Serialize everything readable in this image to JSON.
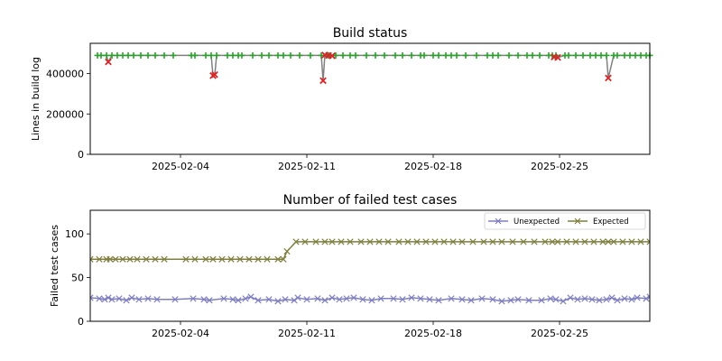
{
  "chart_data": [
    {
      "type": "scatter",
      "title": "Build status",
      "ylabel": "Lines in build log",
      "xlabel": "",
      "date_range": [
        "2025-01-30",
        "2025-03-02"
      ],
      "ylim": [
        0,
        550000
      ],
      "xticks": [
        "2025-02-04",
        "2025-02-11",
        "2025-02-18",
        "2025-02-25"
      ],
      "yticks": [
        0,
        200000,
        400000
      ],
      "ytick_labels": [
        "0",
        "200000",
        "400000"
      ],
      "baseline_lines": 490000,
      "success": {
        "color": "#2ca02c",
        "marker": "plus",
        "dates": [
          "2025-01-30.4",
          "2025-01-30.6",
          "2025-01-30.9",
          "2025-01-31.2",
          "2025-01-31.5",
          "2025-01-31.8",
          "2025-02-01.1",
          "2025-02-01.4",
          "2025-02-01.8",
          "2025-02-02.2",
          "2025-02-02.6",
          "2025-02-03.1",
          "2025-02-03.6",
          "2025-02-04.6",
          "2025-02-04.8",
          "2025-02-05.4",
          "2025-02-05.7",
          "2025-02-06.0",
          "2025-02-06.6",
          "2025-02-06.9",
          "2025-02-07.2",
          "2025-02-07.4",
          "2025-02-08.0",
          "2025-02-08.5",
          "2025-02-08.9",
          "2025-02-09.4",
          "2025-02-09.7",
          "2025-02-10.1",
          "2025-02-10.6",
          "2025-02-11.2",
          "2025-02-11.8",
          "2025-02-12.2",
          "2025-02-12.6",
          "2025-02-13.0",
          "2025-02-13.4",
          "2025-02-13.7",
          "2025-02-14.3",
          "2025-02-14.8",
          "2025-02-15.3",
          "2025-02-15.9",
          "2025-02-16.3",
          "2025-02-16.8",
          "2025-02-17.3",
          "2025-02-17.5",
          "2025-02-18.0",
          "2025-02-18.3",
          "2025-02-18.7",
          "2025-02-19.0",
          "2025-02-19.3",
          "2025-02-19.8",
          "2025-02-20.4",
          "2025-02-21.0",
          "2025-02-21.3",
          "2025-02-21.6",
          "2025-02-22.2",
          "2025-02-22.7",
          "2025-02-23.2",
          "2025-02-23.5",
          "2025-02-23.9",
          "2025-02-24.4",
          "2025-02-24.6",
          "2025-02-24.8",
          "2025-02-25.3",
          "2025-02-25.5",
          "2025-02-25.9",
          "2025-02-26.3",
          "2025-02-26.7",
          "2025-02-27.0",
          "2025-02-27.3",
          "2025-02-27.6",
          "2025-02-28.0",
          "2025-02-28.2",
          "2025-02-28.6",
          "2025-02-28.9",
          "2025-03-01.2",
          "2025-03-01.5",
          "2025-03-01.8",
          "2025-03-02.0"
        ]
      },
      "failures": {
        "color": "#d62728",
        "marker": "x",
        "points": [
          {
            "date": "2025-01-31.0",
            "lines": 458000
          },
          {
            "date": "2025-02-05.8",
            "lines": 390000
          },
          {
            "date": "2025-02-05.9",
            "lines": 395000
          },
          {
            "date": "2025-02-11.9",
            "lines": 365000
          },
          {
            "date": "2025-02-12.0",
            "lines": 492000
          },
          {
            "date": "2025-02-12.2",
            "lines": 490000
          },
          {
            "date": "2025-02-12.4",
            "lines": 488000
          },
          {
            "date": "2025-02-24.7",
            "lines": 482000
          },
          {
            "date": "2025-02-24.9",
            "lines": 480000
          },
          {
            "date": "2025-02-27.7",
            "lines": 378000
          }
        ]
      }
    },
    {
      "type": "line",
      "title": "Number of failed test cases",
      "ylabel": "Failed test cases",
      "xlabel": "",
      "date_range": [
        "2025-01-30",
        "2025-03-02"
      ],
      "ylim": [
        0,
        127
      ],
      "xticks": [
        "2025-02-04",
        "2025-02-11",
        "2025-02-18",
        "2025-02-25"
      ],
      "yticks": [
        0,
        50,
        100
      ],
      "legend_position": "top-right",
      "series": [
        {
          "name": "Unexpected",
          "color": "#7f7fbf",
          "marker": "x",
          "points": [
            [
              "2025-01-30.0",
              27
            ],
            [
              "2025-01-30.5",
              26
            ],
            [
              "2025-01-30.8",
              25
            ],
            [
              "2025-01-31.0",
              27
            ],
            [
              "2025-01-31.2",
              25
            ],
            [
              "2025-01-31.6",
              26
            ],
            [
              "2025-01-32.0",
              24
            ],
            [
              "2025-01-32.3",
              27
            ],
            [
              "2025-02-01.7",
              25
            ],
            [
              "2025-02-02.2",
              26
            ],
            [
              "2025-02-02.7",
              25
            ],
            [
              "2025-02-03.7",
              25
            ],
            [
              "2025-02-04.7",
              26
            ],
            [
              "2025-02-05.3",
              25
            ],
            [
              "2025-02-05.6",
              24
            ],
            [
              "2025-02-06.4",
              26
            ],
            [
              "2025-02-06.9",
              25
            ],
            [
              "2025-02-07.2",
              24
            ],
            [
              "2025-02-07.6",
              26
            ],
            [
              "2025-02-07.9",
              28
            ],
            [
              "2025-02-08.3",
              24
            ],
            [
              "2025-02-08.9",
              25
            ],
            [
              "2025-02-09.4",
              23
            ],
            [
              "2025-02-09.8",
              25
            ],
            [
              "2025-02-10.3",
              24
            ],
            [
              "2025-02-10.5",
              27
            ],
            [
              "2025-02-11.0",
              25
            ],
            [
              "2025-02-11.6",
              26
            ],
            [
              "2025-02-12.0",
              24
            ],
            [
              "2025-02-12.4",
              27
            ],
            [
              "2025-02-12.8",
              25
            ],
            [
              "2025-02-13.2",
              26
            ],
            [
              "2025-02-13.6",
              27
            ],
            [
              "2025-02-14.1",
              25
            ],
            [
              "2025-02-14.6",
              24
            ],
            [
              "2025-02-15.1",
              26
            ],
            [
              "2025-02-15.8",
              26
            ],
            [
              "2025-02-16.3",
              25
            ],
            [
              "2025-02-16.8",
              27
            ],
            [
              "2025-02-17.3",
              26
            ],
            [
              "2025-02-17.8",
              25
            ],
            [
              "2025-02-18.3",
              24
            ],
            [
              "2025-02-19.0",
              26
            ],
            [
              "2025-02-19.6",
              25
            ],
            [
              "2025-02-20.1",
              24
            ],
            [
              "2025-02-20.7",
              26
            ],
            [
              "2025-02-21.3",
              25
            ],
            [
              "2025-02-21.8",
              23
            ],
            [
              "2025-02-22.3",
              24
            ],
            [
              "2025-02-22.7",
              25
            ],
            [
              "2025-02-23.3",
              24
            ],
            [
              "2025-02-24.0",
              24
            ],
            [
              "2025-02-24.5",
              26
            ],
            [
              "2025-02-24.8",
              25
            ],
            [
              "2025-02-25.2",
              23
            ],
            [
              "2025-02-25.6",
              27
            ],
            [
              "2025-02-26.0",
              25
            ],
            [
              "2025-02-26.4",
              26
            ],
            [
              "2025-02-26.8",
              25
            ],
            [
              "2025-02-27.2",
              24
            ],
            [
              "2025-02-27.6",
              25
            ],
            [
              "2025-02-27.9",
              27
            ],
            [
              "2025-02-28.2",
              24
            ],
            [
              "2025-02-28.6",
              26
            ],
            [
              "2025-02-29.0",
              25
            ],
            [
              "2025-03-01.3",
              27
            ],
            [
              "2025-03-01.8",
              26
            ],
            [
              "2025-03-02.0",
              28
            ]
          ]
        },
        {
          "name": "Expected",
          "color": "#7f7f3f",
          "marker": "x",
          "points": [
            [
              "2025-01-30.0",
              71
            ],
            [
              "2025-01-30.5",
              71
            ],
            [
              "2025-01-30.9",
              71
            ],
            [
              "2025-01-31.1",
              71
            ],
            [
              "2025-01-31.4",
              71
            ],
            [
              "2025-01-31.8",
              71
            ],
            [
              "2025-02-01.2",
              71
            ],
            [
              "2025-02-01.6",
              71
            ],
            [
              "2025-02-02.1",
              71
            ],
            [
              "2025-02-02.6",
              71
            ],
            [
              "2025-02-03.1",
              71
            ],
            [
              "2025-02-04.3",
              71
            ],
            [
              "2025-02-04.8",
              71
            ],
            [
              "2025-02-05.4",
              71
            ],
            [
              "2025-02-05.8",
              71
            ],
            [
              "2025-02-06.3",
              71
            ],
            [
              "2025-02-06.8",
              71
            ],
            [
              "2025-02-07.3",
              71
            ],
            [
              "2025-02-07.8",
              71
            ],
            [
              "2025-02-08.3",
              71
            ],
            [
              "2025-02-08.8",
              71
            ],
            [
              "2025-02-09.4",
              71
            ],
            [
              "2025-02-09.7",
              71
            ],
            [
              "2025-02-09.9",
              80
            ],
            [
              "2025-02-10.4",
              91
            ],
            [
              "2025-02-10.9",
              91
            ],
            [
              "2025-02-11.5",
              91
            ],
            [
              "2025-02-12.0",
              91
            ],
            [
              "2025-02-12.4",
              91
            ],
            [
              "2025-02-12.9",
              91
            ],
            [
              "2025-02-13.4",
              91
            ],
            [
              "2025-02-14.0",
              91
            ],
            [
              "2025-02-14.5",
              91
            ],
            [
              "2025-02-15.0",
              91
            ],
            [
              "2025-02-15.5",
              91
            ],
            [
              "2025-02-16.1",
              91
            ],
            [
              "2025-02-16.6",
              91
            ],
            [
              "2025-02-17.1",
              91
            ],
            [
              "2025-02-17.6",
              91
            ],
            [
              "2025-02-18.1",
              91
            ],
            [
              "2025-02-18.6",
              91
            ],
            [
              "2025-02-19.1",
              91
            ],
            [
              "2025-02-19.6",
              91
            ],
            [
              "2025-02-20.2",
              91
            ],
            [
              "2025-02-20.8",
              91
            ],
            [
              "2025-02-21.3",
              91
            ],
            [
              "2025-02-21.8",
              91
            ],
            [
              "2025-02-22.4",
              91
            ],
            [
              "2025-02-23.0",
              91
            ],
            [
              "2025-02-23.6",
              91
            ],
            [
              "2025-02-24.2",
              91
            ],
            [
              "2025-02-24.6",
              91
            ],
            [
              "2025-02-24.9",
              91
            ],
            [
              "2025-02-25.4",
              91
            ],
            [
              "2025-02-25.9",
              91
            ],
            [
              "2025-02-26.4",
              91
            ],
            [
              "2025-02-26.9",
              91
            ],
            [
              "2025-02-27.4",
              91
            ],
            [
              "2025-02-27.7",
              91
            ],
            [
              "2025-02-28.0",
              91
            ],
            [
              "2025-02-28.5",
              91
            ],
            [
              "2025-02-29.0",
              91
            ],
            [
              "2025-03-01.5",
              91
            ],
            [
              "2025-03-02.0",
              91
            ]
          ]
        }
      ]
    }
  ]
}
